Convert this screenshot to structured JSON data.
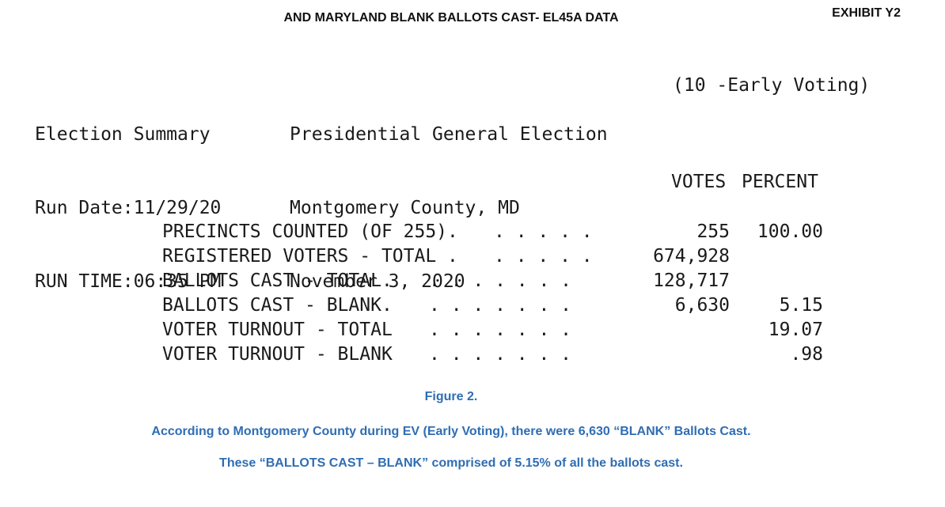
{
  "header": {
    "title": "AND MARYLAND BLANK BALLOTS CAST- EL45A DATA",
    "exhibit": "EXHIBIT Y2"
  },
  "summary": {
    "left": [
      "Election Summary",
      "Run Date:11/29/20",
      "RUN TIME:06:35 PM"
    ],
    "middle": [
      "Presidential General Election",
      "Montgomery County, MD",
      "November 3, 2020"
    ],
    "right": "(10 -Early Voting)"
  },
  "columns": {
    "votes": "VOTES",
    "percent": "PERCENT"
  },
  "rows": [
    {
      "label": "PRECINCTS COUNTED (OF 255).",
      "dots": ". . . . .",
      "votes": "255",
      "percent": "100.00"
    },
    {
      "label": "REGISTERED VOTERS - TOTAL .",
      "dots": ". . . . .",
      "votes": "674,928",
      "percent": ""
    },
    {
      "label": "BALLOTS CAST - TOTAL.",
      "dots": ". . . . . . .",
      "votes": "128,717",
      "percent": ""
    },
    {
      "label": "BALLOTS CAST - BLANK.",
      "dots": ". . . . . . .",
      "votes": "6,630",
      "percent": "5.15"
    },
    {
      "label": "VOTER TURNOUT - TOTAL",
      "dots": ". . . . . . .",
      "votes": "",
      "percent": "19.07"
    },
    {
      "label": "VOTER TURNOUT - BLANK",
      "dots": ". . . . . . .",
      "votes": "",
      "percent": ".98"
    }
  ],
  "captions": {
    "figure": "Figure 2.",
    "line1": "According to Montgomery County during EV (Early Voting), there were 6,630 “BLANK” Ballots Cast.",
    "line2": "These “BALLOTS CAST – BLANK” comprised of 5.15% of all the ballots cast."
  }
}
